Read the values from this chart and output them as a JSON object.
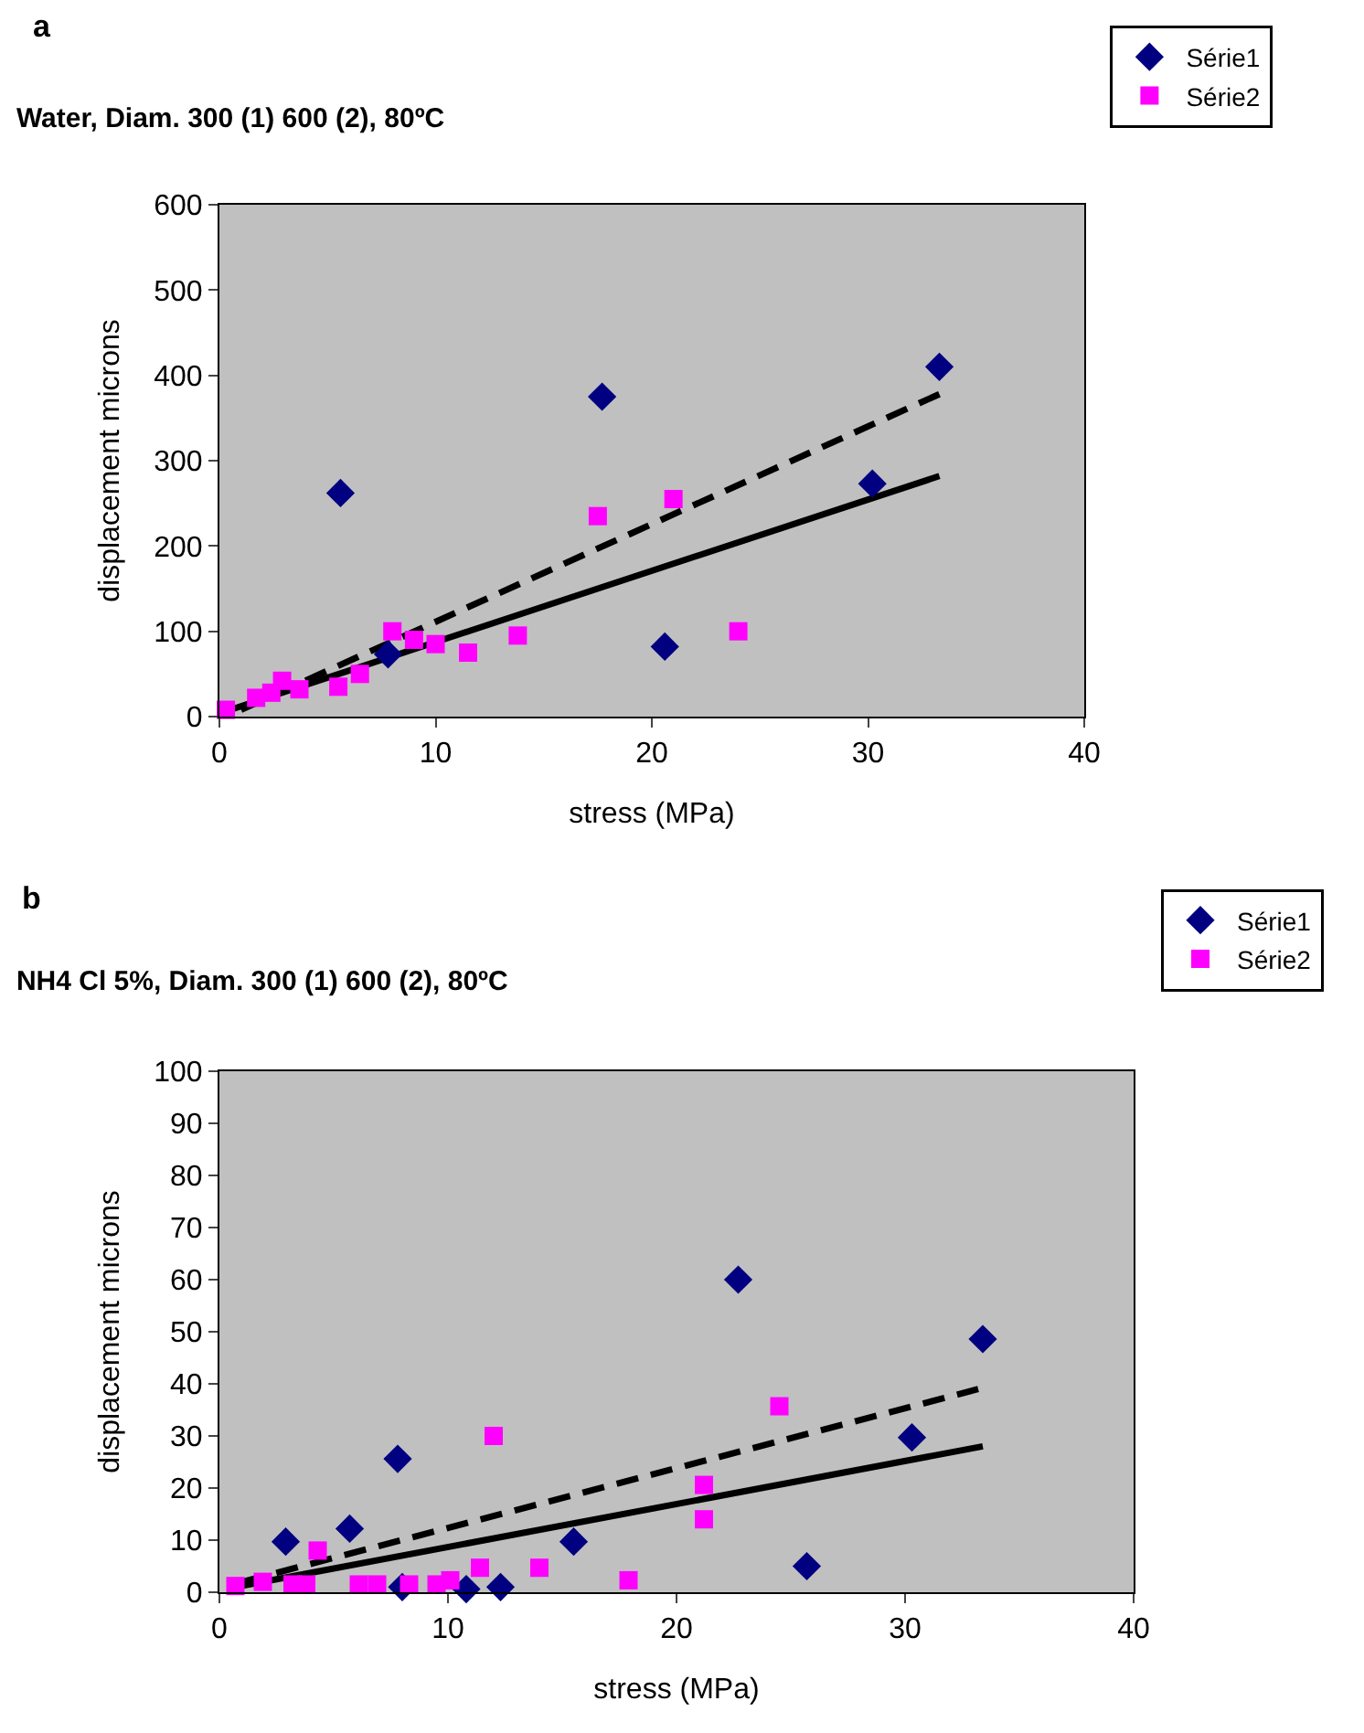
{
  "chart_data": [
    {
      "type": "scatter",
      "title": "Water, Diam. 300 (1) 600 (2), 80ºC",
      "annotations": [
        "a"
      ],
      "xlabel": "stress (MPa)",
      "ylabel": "displacement microns",
      "xlim": [
        0,
        40
      ],
      "xticks": [
        0,
        10,
        20,
        30,
        40
      ],
      "ylim": [
        0,
        600
      ],
      "yticks": [
        0,
        100,
        200,
        300,
        400,
        500,
        600
      ],
      "grid": false,
      "legend": "top right",
      "series": [
        {
          "name": "Série1",
          "color": "#000080",
          "marker": "diamond",
          "x": [
            5.6,
            7.8,
            17.7,
            20.6,
            30.2,
            33.3
          ],
          "values": [
            262,
            73,
            375,
            82,
            273,
            410
          ]
        },
        {
          "name": "Série2",
          "color": "#ff00ff",
          "marker": "square",
          "x": [
            0.3,
            1.7,
            2.4,
            2.9,
            3.7,
            5.5,
            6.5,
            8,
            9,
            10,
            11.5,
            13.8,
            17.5,
            21,
            24
          ],
          "values": [
            8,
            22,
            28,
            42,
            32,
            35,
            50,
            100,
            90,
            85,
            75,
            95,
            235,
            255,
            100
          ]
        },
        {
          "type": "line",
          "color": "#000000",
          "marker": "none",
          "line_style": "dashed",
          "x": [
            1,
            33.3
          ],
          "values": [
            8,
            378
          ]
        },
        {
          "type": "line",
          "color": "#000000",
          "marker": "none",
          "line_style": "solid",
          "x": [
            0.5,
            33.3
          ],
          "values": [
            8,
            282
          ]
        }
      ]
    },
    {
      "type": "scatter",
      "title": "NH4 Cl 5%, Diam. 300 (1) 600 (2), 80ºC",
      "annotations": [
        "b"
      ],
      "xlabel": "stress (MPa)",
      "ylabel": "displacement microns",
      "xlim": [
        0,
        40
      ],
      "xticks": [
        0,
        10,
        20,
        30,
        40
      ],
      "ylim": [
        0,
        100
      ],
      "yticks": [
        0,
        10,
        20,
        30,
        40,
        50,
        60,
        70,
        80,
        90,
        100
      ],
      "grid": false,
      "legend": "top right",
      "series": [
        {
          "name": "Série1",
          "color": "#000080",
          "marker": "diamond",
          "x": [
            2.9,
            5.7,
            7.8,
            8,
            10.8,
            12.3,
            15.5,
            22.7,
            25.7,
            30.3,
            33.4
          ],
          "values": [
            9.7,
            12.2,
            25.6,
            1,
            0.6,
            1,
            9.7,
            60,
            5,
            29.7,
            48.6
          ]
        },
        {
          "name": "Série2",
          "color": "#ff00ff",
          "marker": "square",
          "x": [
            0.7,
            1.9,
            3.2,
            3.8,
            4.3,
            6.1,
            6.9,
            8.3,
            9.5,
            10.1,
            11.4,
            12,
            14,
            17.9,
            21.2,
            21.2,
            24.5
          ],
          "values": [
            1.2,
            2,
            1.5,
            1.5,
            8,
            1.5,
            1.5,
            1.5,
            1.5,
            2.3,
            4.7,
            30,
            4.7,
            2.3,
            20.6,
            14,
            35.7
          ]
        },
        {
          "type": "line",
          "color": "#000000",
          "marker": "none",
          "line_style": "dashed",
          "x": [
            1,
            33.2
          ],
          "values": [
            2,
            39
          ]
        },
        {
          "type": "line",
          "color": "#000000",
          "marker": "none",
          "line_style": "solid",
          "x": [
            0.7,
            33.4
          ],
          "values": [
            1,
            28
          ]
        }
      ]
    }
  ]
}
